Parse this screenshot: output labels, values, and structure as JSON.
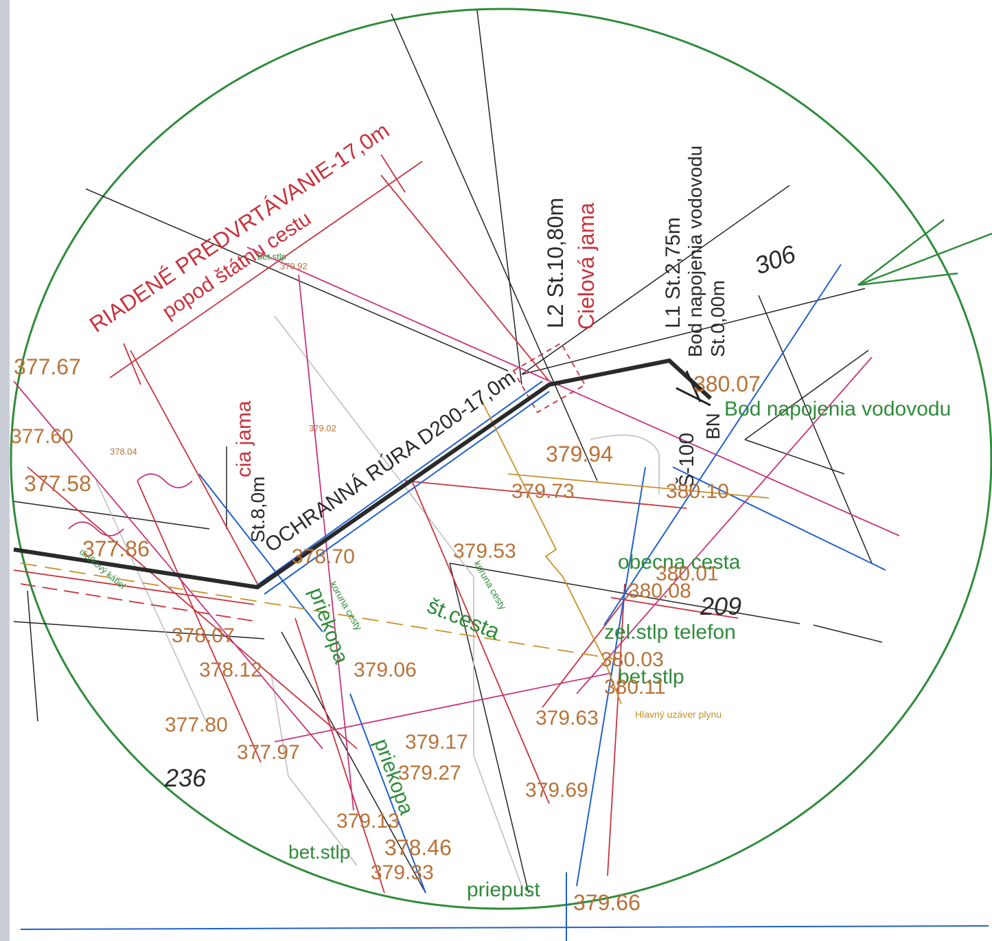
{
  "drawing": {
    "boring": {
      "title": "RIADENÉ PREDVRTÁVANIE-17,0m",
      "subtitle": "popod štátnu cestu"
    },
    "pipe": "OCHRANNÁ RÚRA D200-17,0m",
    "target": {
      "station": "L2 St.10,80m",
      "name": "Cielová jama"
    },
    "start": {
      "name": "cia jama",
      "station": "St.8,0m"
    },
    "connection": {
      "station": "L1 St.2,75m",
      "name": "Bod napojenia vodovodu",
      "start": "St.0,00m",
      "point": "Bod napojenia vodovodu",
      "shaft": "Š-100",
      "mark": "BN"
    },
    "parcels": [
      "306",
      "209",
      "236"
    ],
    "features": [
      "obecna cesta",
      "zel.stlp telefon",
      "bet.stlp",
      "št.cesta",
      "koruna cesty",
      "koruna cesty",
      "priepust",
      "bet.stlp",
      "priekopa",
      "priekopa",
      "Hlavný uzáver plynu",
      "bet.stlp",
      "diaľkový kábel"
    ],
    "elevations": [
      "377.67",
      "377.60",
      "377.58",
      "377.86",
      "378.07",
      "378.12",
      "377.80",
      "377.97",
      "379.94",
      "379.73",
      "380.10",
      "379.53",
      "380.01",
      "380.08",
      "380.03",
      "380.11",
      "379.63",
      "379.69",
      "379.66",
      "378.46",
      "379.33",
      "379.27",
      "379.17",
      "380.07",
      "378.70",
      "379.06",
      "379.92",
      "379.02",
      "378.04",
      "379.13"
    ]
  }
}
